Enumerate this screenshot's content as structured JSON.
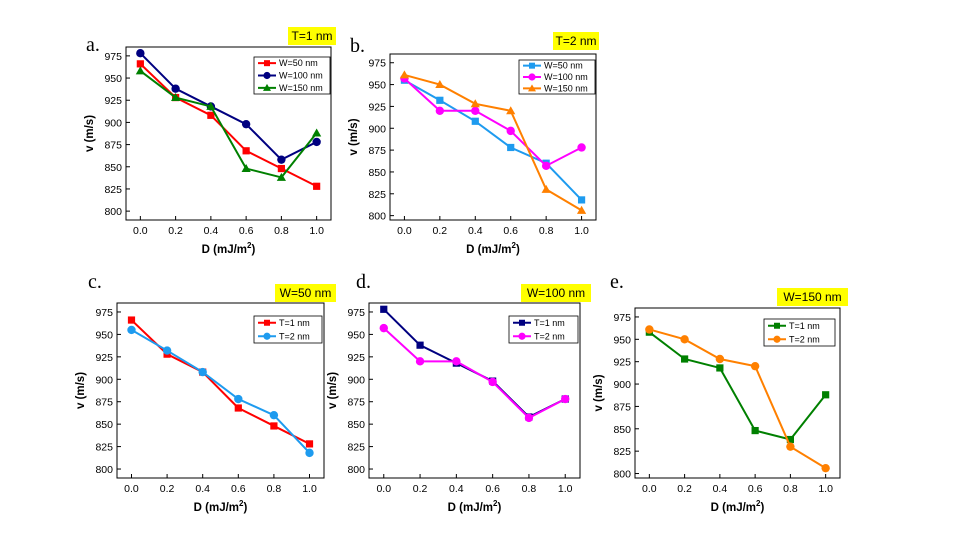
{
  "chart_data": [
    {
      "type": "line",
      "panel_letter": "a.",
      "tag": "T=1 nm",
      "tag_color": "#ffff00",
      "xlabel": "D (mJ/m",
      "xlabel_sup": "2",
      "xlabel_end": ")",
      "ylabel": "v (m/s)",
      "xlim": [
        0.0,
        1.0
      ],
      "ylim": [
        790,
        985
      ],
      "x_ticks": [
        "0.0",
        "0.2",
        "0.4",
        "0.6",
        "0.8",
        "1.0"
      ],
      "y_ticks": [
        "800",
        "825",
        "850",
        "875",
        "900",
        "925",
        "950",
        "975"
      ],
      "legend_position": "top-right",
      "x": [
        0.0,
        0.2,
        0.4,
        0.6,
        0.8,
        1.0
      ],
      "series": [
        {
          "name": "W=50 nm",
          "color": "#ff0000",
          "marker": "square",
          "values": [
            966,
            928,
            908,
            868,
            848,
            828
          ]
        },
        {
          "name": "W=100 nm",
          "color": "#000080",
          "marker": "circle",
          "values": [
            978,
            938,
            918,
            898,
            858,
            878
          ]
        },
        {
          "name": "W=150 nm",
          "color": "#008000",
          "marker": "triangle",
          "values": [
            958,
            928,
            918,
            848,
            838,
            888
          ]
        }
      ]
    },
    {
      "type": "line",
      "panel_letter": "b.",
      "tag": "T=2 nm",
      "tag_color": "#ffff00",
      "xlabel": "D (mJ/m",
      "xlabel_sup": "2",
      "xlabel_end": ")",
      "ylabel": "v (m/s)",
      "xlim": [
        0.0,
        1.0
      ],
      "ylim": [
        795,
        985
      ],
      "x_ticks": [
        "0.0",
        "0.2",
        "0.4",
        "0.6",
        "0.8",
        "1.0"
      ],
      "y_ticks": [
        "800",
        "825",
        "850",
        "875",
        "900",
        "925",
        "950",
        "975"
      ],
      "legend_position": "top-right",
      "x": [
        0.0,
        0.2,
        0.4,
        0.6,
        0.8,
        1.0
      ],
      "series": [
        {
          "name": "W=50 nm",
          "color": "#1e9bef",
          "marker": "square",
          "values": [
            955,
            932,
            908,
            878,
            860,
            818
          ]
        },
        {
          "name": "W=100 nm",
          "color": "#ff00ff",
          "marker": "circle",
          "values": [
            957,
            920,
            920,
            897,
            857,
            878
          ]
        },
        {
          "name": "W=150 nm",
          "color": "#ff8000",
          "marker": "triangle",
          "values": [
            961,
            950,
            928,
            920,
            830,
            806
          ]
        }
      ]
    },
    {
      "type": "line",
      "panel_letter": "c.",
      "tag": "W=50 nm",
      "tag_color": "#ffff00",
      "xlabel": "D (mJ/m",
      "xlabel_sup": "2",
      "xlabel_end": ")",
      "ylabel": "v (m/s)",
      "xlim": [
        0.0,
        1.0
      ],
      "ylim": [
        790,
        985
      ],
      "x_ticks": [
        "0.0",
        "0.2",
        "0.4",
        "0.6",
        "0.8",
        "1.0"
      ],
      "y_ticks": [
        "800",
        "825",
        "850",
        "875",
        "900",
        "925",
        "950",
        "975"
      ],
      "legend_position": "top-right",
      "x": [
        0.0,
        0.2,
        0.4,
        0.6,
        0.8,
        1.0
      ],
      "series": [
        {
          "name": "T=1 nm",
          "color": "#ff0000",
          "marker": "square",
          "values": [
            966,
            928,
            908,
            868,
            848,
            828
          ]
        },
        {
          "name": "T=2 nm",
          "color": "#1e9bef",
          "marker": "circle",
          "values": [
            955,
            932,
            908,
            878,
            860,
            818
          ]
        }
      ]
    },
    {
      "type": "line",
      "panel_letter": "d.",
      "tag": "W=100 nm",
      "tag_color": "#ffff00",
      "xlabel": "D (mJ/m",
      "xlabel_sup": "2",
      "xlabel_end": ")",
      "ylabel": "v (m/s)",
      "xlim": [
        0.0,
        1.0
      ],
      "ylim": [
        790,
        985
      ],
      "x_ticks": [
        "0.0",
        "0.2",
        "0.4",
        "0.6",
        "0.8",
        "1.0"
      ],
      "y_ticks": [
        "800",
        "825",
        "850",
        "875",
        "900",
        "925",
        "950",
        "975"
      ],
      "legend_position": "top-right",
      "x": [
        0.0,
        0.2,
        0.4,
        0.6,
        0.8,
        1.0
      ],
      "series": [
        {
          "name": "T=1 nm",
          "color": "#000080",
          "marker": "square",
          "values": [
            978,
            938,
            918,
            898,
            858,
            878
          ]
        },
        {
          "name": "T=2 nm",
          "color": "#ff00ff",
          "marker": "circle",
          "values": [
            957,
            920,
            920,
            897,
            857,
            878
          ]
        }
      ]
    },
    {
      "type": "line",
      "panel_letter": "e.",
      "tag": "W=150 nm",
      "tag_color": "#ffff00",
      "xlabel": "D (mJ/m",
      "xlabel_sup": "2",
      "xlabel_end": ")",
      "ylabel": "v (m/s)",
      "xlim": [
        0.0,
        1.0
      ],
      "ylim": [
        795,
        985
      ],
      "x_ticks": [
        "0.0",
        "0.2",
        "0.4",
        "0.6",
        "0.8",
        "1.0"
      ],
      "y_ticks": [
        "800",
        "825",
        "850",
        "875",
        "900",
        "925",
        "950",
        "975"
      ],
      "legend_position": "top-right",
      "x": [
        0.0,
        0.2,
        0.4,
        0.6,
        0.8,
        1.0
      ],
      "series": [
        {
          "name": "T=1 nm",
          "color": "#008000",
          "marker": "square",
          "values": [
            958,
            928,
            918,
            848,
            838,
            888
          ]
        },
        {
          "name": "T=2 nm",
          "color": "#ff8000",
          "marker": "circle",
          "values": [
            961,
            950,
            928,
            920,
            830,
            806
          ]
        }
      ]
    }
  ]
}
